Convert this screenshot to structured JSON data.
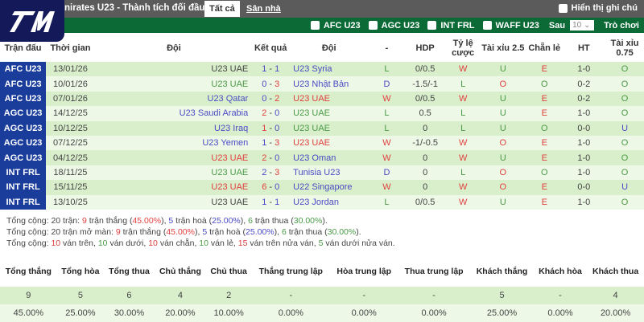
{
  "header": {
    "title": "nirates U23 - Thành tích đối đầu",
    "tabs": [
      "Tất cả",
      "Sân nhà"
    ],
    "show_notes": "Hiển thị ghi chú"
  },
  "filters": {
    "items": [
      "AFC U23",
      "AGC U23",
      "INT FRL",
      "WAFF U23"
    ],
    "after_label": "Sau",
    "after_value": "10",
    "games": "Trò chơi"
  },
  "colors": {
    "topbar": "#5b5b5b",
    "filterbar": "#0b6a35",
    "league": "#1a3d9c",
    "row_odd": "#d9efcb",
    "row_even": "#eef8e7",
    "win": "#e0413f",
    "draw": "#4b4bc4",
    "loss": "#4b9a47"
  },
  "columns": [
    "Trận đấu",
    "Thời gian",
    "Đội",
    "Kết quả",
    "Đội",
    "-",
    "HDP",
    "Tỷ lệ cược",
    "Tài xỉu 2.5",
    "Chẵn lẻ",
    "HT",
    "Tài xỉu 0.75"
  ],
  "matches": [
    {
      "league": "AFC U23",
      "date": "13/01/26",
      "home": "U23 UAE",
      "hc": "k",
      "s1": "1",
      "c1": "b",
      "s2": "1",
      "c2": "b",
      "away": "U23 Syria",
      "ac": "b",
      "res": "L",
      "rc": "g",
      "hdp": "0/0.5",
      "odds": "W",
      "oc": "r",
      "ou": "U",
      "uc": "g",
      "oe": "E",
      "ec": "r",
      "ht": "1-0",
      "ou75": "O",
      "u7c": "g"
    },
    {
      "league": "AFC U23",
      "date": "10/01/26",
      "home": "U23 UAE",
      "hc": "g",
      "s1": "0",
      "c1": "b",
      "s2": "3",
      "c2": "r",
      "away": "U23 Nhật Bản",
      "ac": "b",
      "res": "D",
      "rc": "b",
      "hdp": "-1.5/-1",
      "odds": "L",
      "oc": "g",
      "ou": "O",
      "uc": "r",
      "oe": "O",
      "ec": "g",
      "ht": "0-2",
      "ou75": "O",
      "u7c": "g"
    },
    {
      "league": "AFC U23",
      "date": "07/01/26",
      "home": "U23 Qatar",
      "hc": "b",
      "s1": "0",
      "c1": "b",
      "s2": "2",
      "c2": "r",
      "away": "U23 UAE",
      "ac": "r",
      "res": "W",
      "rc": "r",
      "hdp": "0/0.5",
      "odds": "W",
      "oc": "r",
      "ou": "U",
      "uc": "g",
      "oe": "E",
      "ec": "r",
      "ht": "0-2",
      "ou75": "O",
      "u7c": "g"
    },
    {
      "league": "AGC U23",
      "date": "14/12/25",
      "home": "U23 Saudi Arabia",
      "hc": "b",
      "s1": "2",
      "c1": "r",
      "s2": "0",
      "c2": "b",
      "away": "U23 UAE",
      "ac": "g",
      "res": "L",
      "rc": "g",
      "hdp": "0.5",
      "odds": "L",
      "oc": "g",
      "ou": "U",
      "uc": "g",
      "oe": "E",
      "ec": "r",
      "ht": "1-0",
      "ou75": "O",
      "u7c": "g"
    },
    {
      "league": "AGC U23",
      "date": "10/12/25",
      "home": "U23 Iraq",
      "hc": "b",
      "s1": "1",
      "c1": "r",
      "s2": "0",
      "c2": "b",
      "away": "U23 UAE",
      "ac": "g",
      "res": "L",
      "rc": "g",
      "hdp": "0",
      "odds": "L",
      "oc": "g",
      "ou": "U",
      "uc": "g",
      "oe": "O",
      "ec": "g",
      "ht": "0-0",
      "ou75": "U",
      "u7c": "b"
    },
    {
      "league": "AGC U23",
      "date": "07/12/25",
      "home": "U23 Yemen",
      "hc": "b",
      "s1": "1",
      "c1": "b",
      "s2": "3",
      "c2": "r",
      "away": "U23 UAE",
      "ac": "r",
      "res": "W",
      "rc": "r",
      "hdp": "-1/-0.5",
      "odds": "W",
      "oc": "r",
      "ou": "O",
      "uc": "r",
      "oe": "E",
      "ec": "r",
      "ht": "1-0",
      "ou75": "O",
      "u7c": "g"
    },
    {
      "league": "AGC U23",
      "date": "04/12/25",
      "home": "U23 UAE",
      "hc": "r",
      "s1": "2",
      "c1": "r",
      "s2": "0",
      "c2": "b",
      "away": "U23 Oman",
      "ac": "b",
      "res": "W",
      "rc": "r",
      "hdp": "0",
      "odds": "W",
      "oc": "r",
      "ou": "U",
      "uc": "g",
      "oe": "E",
      "ec": "r",
      "ht": "1-0",
      "ou75": "O",
      "u7c": "g"
    },
    {
      "league": "INT FRL",
      "date": "18/11/25",
      "home": "U23 UAE",
      "hc": "g",
      "s1": "2",
      "c1": "b",
      "s2": "3",
      "c2": "r",
      "away": "Tunisia U23",
      "ac": "b",
      "res": "D",
      "rc": "b",
      "hdp": "0",
      "odds": "L",
      "oc": "g",
      "ou": "O",
      "uc": "r",
      "oe": "O",
      "ec": "g",
      "ht": "1-0",
      "ou75": "O",
      "u7c": "g"
    },
    {
      "league": "INT FRL",
      "date": "15/11/25",
      "home": "U23 UAE",
      "hc": "r",
      "s1": "6",
      "c1": "r",
      "s2": "0",
      "c2": "b",
      "away": "U22 Singapore",
      "ac": "b",
      "res": "W",
      "rc": "r",
      "hdp": "0",
      "odds": "W",
      "oc": "r",
      "ou": "O",
      "uc": "r",
      "oe": "E",
      "ec": "r",
      "ht": "0-0",
      "ou75": "U",
      "u7c": "b"
    },
    {
      "league": "INT FRL",
      "date": "13/10/25",
      "home": "U23 UAE",
      "hc": "k",
      "s1": "1",
      "c1": "b",
      "s2": "1",
      "c2": "b",
      "away": "U23 Jordan",
      "ac": "b",
      "res": "L",
      "rc": "g",
      "hdp": "0/0.5",
      "odds": "W",
      "oc": "r",
      "ou": "U",
      "uc": "g",
      "oe": "E",
      "ec": "r",
      "ht": "1-0",
      "ou75": "O",
      "u7c": "g"
    }
  ],
  "summary": [
    [
      [
        "Tổng cộng: 20 trận: ",
        "k"
      ],
      [
        "9",
        "r"
      ],
      [
        " trận thắng (",
        "k"
      ],
      [
        "45.00%",
        "r"
      ],
      [
        "), ",
        "k"
      ],
      [
        "5",
        "b"
      ],
      [
        " trận hoà (",
        "k"
      ],
      [
        "25.00%",
        "b"
      ],
      [
        "), ",
        "k"
      ],
      [
        "6",
        "g"
      ],
      [
        " trận thua (",
        "k"
      ],
      [
        "30.00%",
        "g"
      ],
      [
        ").",
        "k"
      ]
    ],
    [
      [
        "Tổng cộng: 20 trận mở màn: ",
        "k"
      ],
      [
        "9",
        "r"
      ],
      [
        " trận thắng (",
        "k"
      ],
      [
        "45.00%",
        "r"
      ],
      [
        "), ",
        "k"
      ],
      [
        "5",
        "b"
      ],
      [
        " trận hoà (",
        "k"
      ],
      [
        "25.00%",
        "b"
      ],
      [
        "), ",
        "k"
      ],
      [
        "6",
        "g"
      ],
      [
        " trận thua (",
        "k"
      ],
      [
        "30.00%",
        "g"
      ],
      [
        ").",
        "k"
      ]
    ],
    [
      [
        "Tổng cộng: ",
        "k"
      ],
      [
        "10",
        "r"
      ],
      [
        " ván trên, ",
        "k"
      ],
      [
        "10",
        "g"
      ],
      [
        " ván dưới, ",
        "k"
      ],
      [
        "10",
        "r"
      ],
      [
        " ván chẵn, ",
        "k"
      ],
      [
        "10",
        "g"
      ],
      [
        " ván lẻ, ",
        "k"
      ],
      [
        "15",
        "r"
      ],
      [
        " ván trên nửa ván, ",
        "k"
      ],
      [
        "5",
        "g"
      ],
      [
        " ván dưới nửa ván.",
        "k"
      ]
    ]
  ],
  "totals": {
    "headers": [
      "Tổng thắng",
      "Tổng hòa",
      "Tổng thua",
      "Chủ thắng",
      "Chủ thua",
      "Thắng trung lập",
      "Hòa trung lập",
      "Thua trung lập",
      "Khách thắng",
      "Khách hòa",
      "Khách thua"
    ],
    "counts": [
      "9",
      "5",
      "6",
      "4",
      "2",
      "-",
      "-",
      "-",
      "5",
      "-",
      "4"
    ],
    "percents": [
      "45.00%",
      "25.00%",
      "30.00%",
      "20.00%",
      "10.00%",
      "0.00%",
      "0.00%",
      "0.00%",
      "25.00%",
      "0.00%",
      "20.00%"
    ]
  }
}
